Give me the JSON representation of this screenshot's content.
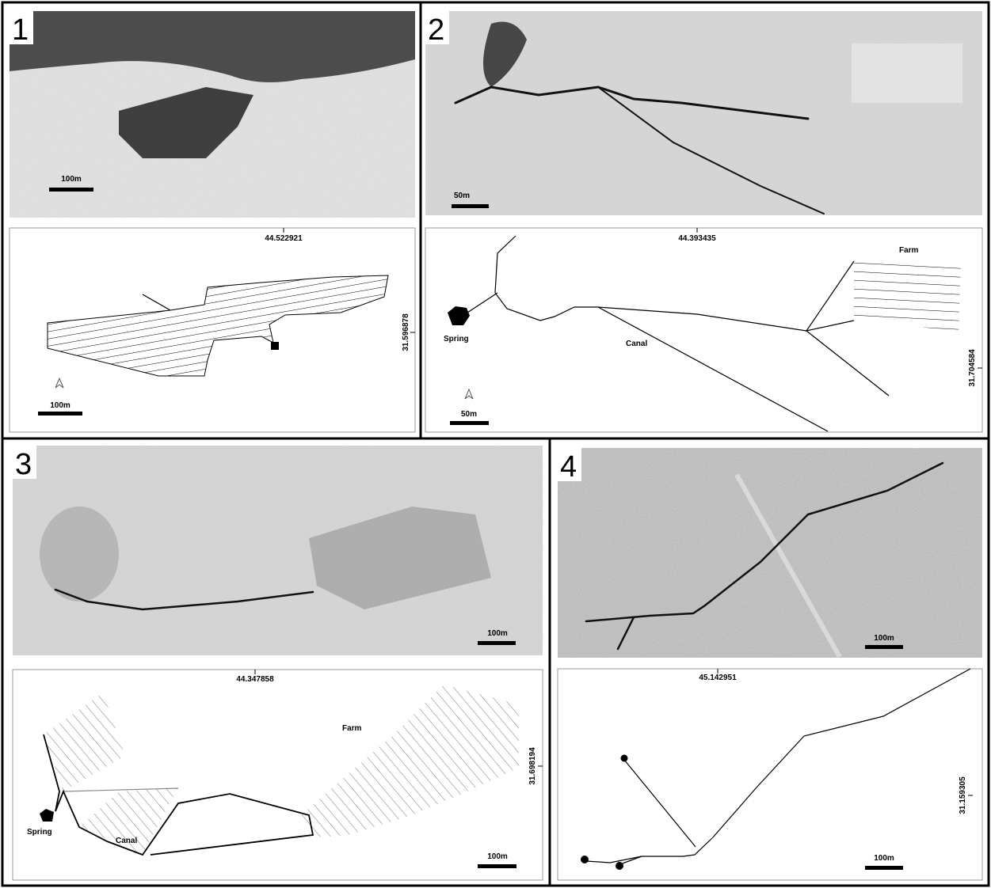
{
  "panels": [
    {
      "number": "1",
      "photo_scale": "100m",
      "map_scale": "100m",
      "longitude": "44.522921",
      "latitude": "31.596878"
    },
    {
      "number": "2",
      "photo_scale": "50m",
      "map_scale": "50m",
      "longitude": "44.393435",
      "latitude": "31.704584",
      "labels": [
        "Spring",
        "Canal",
        "Farm"
      ]
    },
    {
      "number": "3",
      "photo_scale": "100m",
      "map_scale": "100m",
      "longitude": "44.347858",
      "latitude": "31.698194",
      "labels": [
        "Farm",
        "Spring",
        "Canal"
      ]
    },
    {
      "number": "4",
      "photo_scale": "100m",
      "map_scale": "100m",
      "longitude": "45.142951",
      "latitude": "31.159305"
    }
  ]
}
